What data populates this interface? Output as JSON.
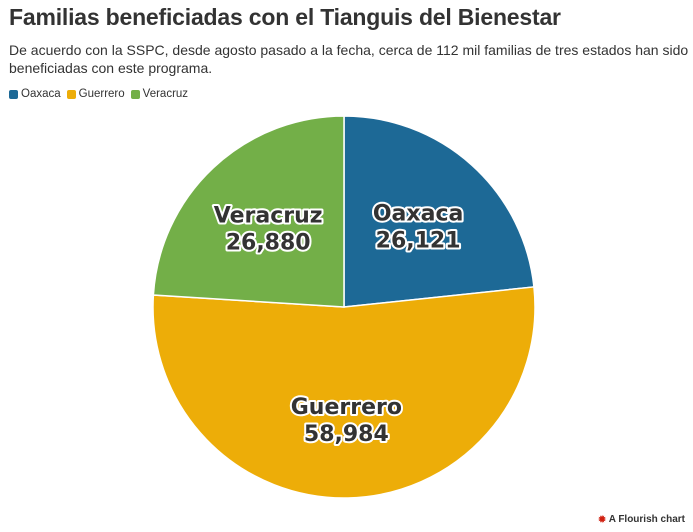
{
  "title": "Familias beneficiadas con el Tianguis del Bienestar",
  "subtitle": "De acuerdo con la SSPC, desde agosto pasado a la fecha, cerca de 112 mil familias de tres estados han sido beneficiadas con este programa.",
  "legend": [
    {
      "label": "Oaxaca",
      "color": "#1d6996"
    },
    {
      "label": "Guerrero",
      "color": "#edad08"
    },
    {
      "label": "Veracruz",
      "color": "#73af48"
    }
  ],
  "credit": {
    "icon": "flourish-logo-icon",
    "text": "A Flourish chart"
  },
  "chart_data": {
    "type": "pie",
    "categories": [
      "Oaxaca",
      "Guerrero",
      "Veracruz"
    ],
    "values": [
      26121,
      58984,
      26880
    ],
    "value_labels": [
      "26,121",
      "58,984",
      "26,880"
    ],
    "colors": [
      "#1d6996",
      "#edad08",
      "#73af48"
    ],
    "legend": "top-left"
  }
}
